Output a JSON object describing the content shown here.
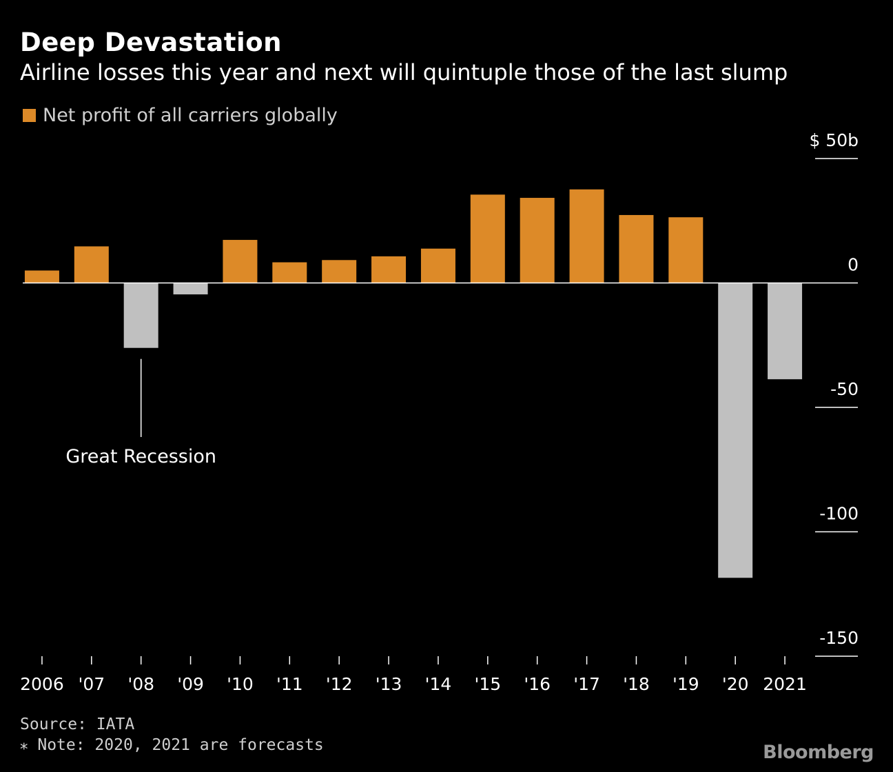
{
  "title": "Deep Devastation",
  "subtitle": "Airline losses this year and next will quintuple those of the last slump",
  "legend": {
    "label": "Net profit of all carriers globally",
    "swatch_color": "#dd8a28"
  },
  "footer": {
    "source": "Source: IATA",
    "note": "⁎ Note: 2020, 2021 are forecasts"
  },
  "brand": "Bloomberg",
  "colors": {
    "positive": "#dd8a28",
    "negative": "#c0c0c0",
    "background": "#000000",
    "axis": "#ffffff",
    "tick_text": "#ffffff"
  },
  "chart_data": {
    "type": "bar",
    "categories": [
      "2006",
      "'07",
      "'08",
      "'09",
      "'10",
      "'11",
      "'12",
      "'13",
      "'14",
      "'15",
      "'16",
      "'17",
      "'18",
      "'19",
      "'20",
      "2021"
    ],
    "series": [
      {
        "name": "Net profit of all carriers globally",
        "values": [
          5,
          14.7,
          -26.1,
          -4.6,
          17.3,
          8.3,
          9.2,
          10.7,
          13.8,
          35.5,
          34.2,
          37.6,
          27.3,
          26.4,
          -118.5,
          -38.7
        ]
      }
    ],
    "y_ticks": [
      50,
      0,
      -50,
      -100,
      -150
    ],
    "y_tick_labels": [
      "$ 50b",
      "0",
      "-50",
      "-100",
      "-150"
    ],
    "ylim": [
      -150,
      50
    ],
    "xlabel": "",
    "ylabel": "",
    "annotation": {
      "text": "Great Recession",
      "category": "'08"
    },
    "grid": false,
    "legend_position": "top-left"
  }
}
